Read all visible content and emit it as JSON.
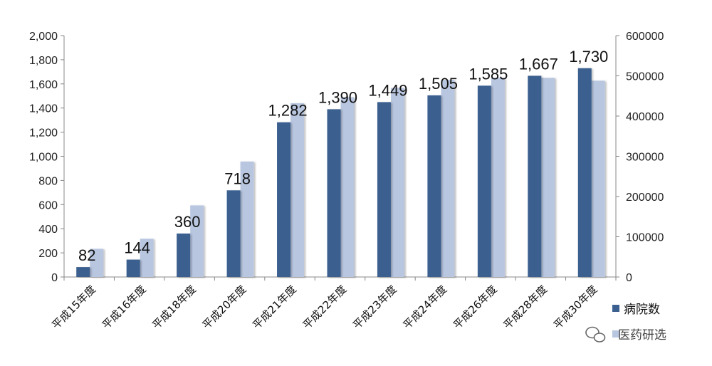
{
  "chart_data": {
    "type": "bar",
    "categories": [
      "平成15年度",
      "平成16年度",
      "平成18年度",
      "平成20年度",
      "平成21年度",
      "平成22年度",
      "平成23年度",
      "平成24年度",
      "平成26年度",
      "平成28年度",
      "平成30年度"
    ],
    "series": [
      {
        "name": "病院数",
        "axis": "left",
        "color": "#3b5f8f",
        "values": [
          82,
          144,
          360,
          718,
          1282,
          1390,
          1449,
          1505,
          1585,
          1667,
          1730
        ],
        "data_labels": [
          "82",
          "144",
          "360",
          "718",
          "1,282",
          "1,390",
          "1,449",
          "1,505",
          "1,585",
          "1,667",
          "1,730"
        ]
      },
      {
        "name": "",
        "axis": "right",
        "color": "#b8c6e0",
        "values": [
          70000,
          95000,
          178000,
          287000,
          432000,
          447000,
          470000,
          490000,
          495000,
          495000,
          488000
        ]
      }
    ],
    "y_left": {
      "min": 0,
      "max": 2000,
      "ticks": [
        "0",
        "200",
        "400",
        "600",
        "800",
        "1,000",
        "1,200",
        "1,400",
        "1,600",
        "1,800",
        "2,000"
      ]
    },
    "y_right": {
      "min": 0,
      "max": 600000,
      "ticks": [
        "0",
        "100000",
        "200000",
        "300000",
        "400000",
        "500000",
        "600000"
      ]
    },
    "legend": {
      "placement": "bottom-right",
      "entries": [
        "病院数"
      ]
    }
  },
  "watermark": {
    "text": "医药研选"
  }
}
